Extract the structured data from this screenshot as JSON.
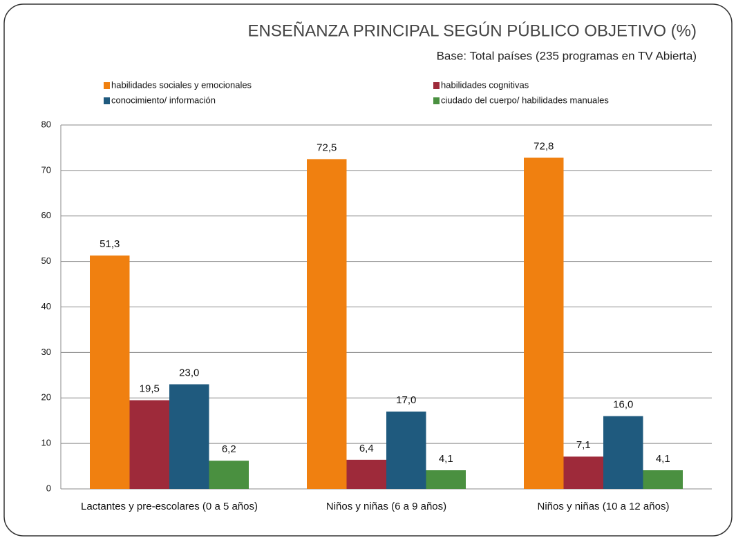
{
  "chart_data": {
    "type": "bar",
    "title": "ENSEÑANZA PRINCIPAL SEGÚN PÚBLICO OBJETIVO (%)",
    "subtitle": "Base: Total países (235 programas en TV Abierta)",
    "categories": [
      "Lactantes y pre-escolares (0 a 5 años)",
      "Niños y niñas (6 a 9 años)",
      "Niños y niñas (10 a 12 años)"
    ],
    "series": [
      {
        "name": "habilidades sociales y emocionales",
        "color": "#f08010",
        "values": [
          51.3,
          72.5,
          72.8
        ],
        "value_labels": [
          "51,3",
          "72,5",
          "72,8"
        ]
      },
      {
        "name": "habilidades cognitivas",
        "color": "#9e2a3a",
        "values": [
          19.5,
          6.4,
          7.1
        ],
        "value_labels": [
          "19,5",
          "6,4",
          "7,1"
        ]
      },
      {
        "name": "conocimiento/ información",
        "color": "#1f5a7e",
        "values": [
          23.0,
          17.0,
          16.0
        ],
        "value_labels": [
          "23,0",
          "17,0",
          "16,0"
        ]
      },
      {
        "name": "ciudado del cuerpo/ habilidades manuales",
        "color": "#4a9040",
        "values": [
          6.2,
          4.1,
          4.1
        ],
        "value_labels": [
          "6,2",
          "4,1",
          "4,1"
        ]
      }
    ],
    "ylim": [
      0,
      80
    ],
    "yticks": [
      0,
      10,
      20,
      30,
      40,
      50,
      60,
      70,
      80
    ],
    "grid": true
  }
}
